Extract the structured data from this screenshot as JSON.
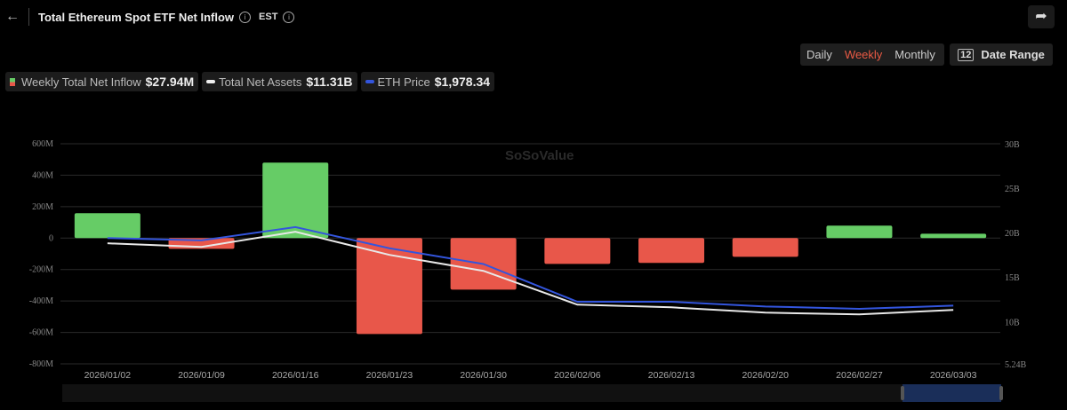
{
  "header": {
    "title": "Total Ethereum Spot ETF Net Inflow",
    "timezone": "EST",
    "back_icon": "arrow-left-icon",
    "share_icon": "share-icon"
  },
  "controls": {
    "periods": [
      "Daily",
      "Weekly",
      "Monthly"
    ],
    "active_period": "Weekly",
    "date_range_label": "Date Range"
  },
  "legend": [
    {
      "label": "Weekly Total Net Inflow",
      "value": "$27.94M"
    },
    {
      "label": "Total Net Assets",
      "value": "$11.31B"
    },
    {
      "label": "ETH Price",
      "value": "$1,978.34"
    }
  ],
  "colors": {
    "positive": "#66cc66",
    "negative": "#e8574a",
    "net_assets": "#e8e8e8",
    "eth_price": "#3355dd",
    "accent": "#ea5a44"
  },
  "watermark": "SoSoValue",
  "chart_data": {
    "type": "bar",
    "categories": [
      "2026/01/02",
      "2026/01/09",
      "2026/01/16",
      "2026/01/23",
      "2026/01/30",
      "2026/02/06",
      "2026/02/13",
      "2026/02/20",
      "2026/02/27",
      "2026/03/03"
    ],
    "series": [
      {
        "name": "Weekly Total Net Inflow",
        "type": "bar",
        "axis": "left",
        "values": [
          158,
          -68,
          480,
          -610,
          -328,
          -164,
          -158,
          -119,
          79,
          27.94
        ]
      },
      {
        "name": "Total Net Assets",
        "type": "line",
        "axis": "right",
        "values": [
          18.8,
          18.4,
          20.1,
          17.5,
          15.7,
          11.9,
          11.6,
          11.0,
          10.8,
          11.31
        ]
      },
      {
        "name": "ETH Price",
        "type": "line",
        "axis": "hidden",
        "values": [
          3115,
          3075,
          3300,
          2943,
          2679,
          2044,
          2044,
          1965,
          1925,
          1978.34
        ]
      }
    ],
    "left_axis": {
      "ticks": [
        "600M",
        "400M",
        "200M",
        "0",
        "-200M",
        "-400M",
        "-600M",
        "-800M"
      ],
      "range": [
        -800,
        600
      ],
      "unit": "M"
    },
    "right_axis": {
      "ticks": [
        "30B",
        "25B",
        "20B",
        "15B",
        "10B",
        "5.24B"
      ],
      "range": [
        5.24,
        30
      ],
      "unit": "B"
    },
    "grid": true
  }
}
